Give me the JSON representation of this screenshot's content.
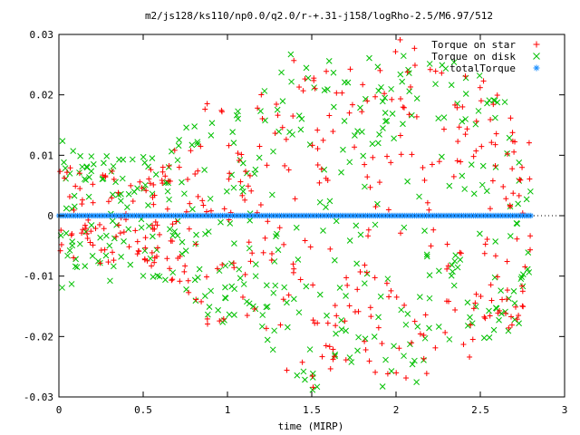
{
  "chart_data": {
    "type": "scatter",
    "title": "m2/js128/ks110/np0.0/q2.0/r-+.31-j158/logRho-2.5/M6.97/512",
    "xlabel": "time (MIRP)",
    "ylabel": "",
    "xlim": [
      0,
      3
    ],
    "ylim": [
      -0.03,
      0.03
    ],
    "x_ticks": [
      0,
      0.5,
      1,
      1.5,
      2,
      2.5,
      3
    ],
    "x_tick_labels": [
      "0",
      "0.5",
      "1",
      "1.5",
      "2",
      "2.5",
      "3"
    ],
    "y_ticks": [
      -0.03,
      -0.02,
      -0.01,
      0,
      0.01,
      0.02,
      0.03
    ],
    "y_tick_labels": [
      "-0.03",
      "-0.02",
      "-0.01",
      "0",
      "0.01",
      "0.02",
      "0.03"
    ],
    "grid": false,
    "legend_position": "top-right",
    "t_range": [
      0,
      2.8
    ],
    "series": [
      {
        "name": "Torque on star",
        "marker": "plus",
        "color": "#ff0000",
        "envelope": {
          "t": [
            0,
            0.1,
            0.2,
            0.3,
            0.4,
            0.5,
            0.6,
            0.7,
            0.8,
            0.9,
            1.0,
            1.1,
            1.2,
            1.3,
            1.4,
            1.5,
            1.6,
            1.7,
            1.8,
            1.9,
            2.0,
            2.1,
            2.2,
            2.3,
            2.4,
            2.5,
            2.6,
            2.7,
            2.8
          ],
          "amplitude": [
            0.008,
            0.008,
            0.007,
            0.009,
            0.008,
            0.008,
            0.009,
            0.012,
            0.015,
            0.02,
            0.018,
            0.016,
            0.02,
            0.024,
            0.028,
            0.029,
            0.027,
            0.025,
            0.024,
            0.028,
            0.03,
            0.028,
            0.026,
            0.024,
            0.026,
            0.025,
            0.022,
            0.018,
            0.014
          ]
        }
      },
      {
        "name": "Torque on disk",
        "marker": "cross",
        "color": "#00c000",
        "envelope": {
          "t": [
            0,
            0.1,
            0.2,
            0.3,
            0.4,
            0.5,
            0.6,
            0.7,
            0.8,
            0.9,
            1.0,
            1.1,
            1.2,
            1.3,
            1.4,
            1.5,
            1.6,
            1.7,
            1.8,
            1.9,
            2.0,
            2.1,
            2.2,
            2.3,
            2.4,
            2.5,
            2.6,
            2.7,
            2.8
          ],
          "amplitude": [
            0.013,
            0.011,
            0.01,
            0.011,
            0.01,
            0.01,
            0.011,
            0.013,
            0.016,
            0.019,
            0.018,
            0.017,
            0.02,
            0.024,
            0.028,
            0.029,
            0.027,
            0.025,
            0.025,
            0.028,
            0.03,
            0.029,
            0.027,
            0.025,
            0.026,
            0.025,
            0.022,
            0.019,
            0.015
          ]
        }
      },
      {
        "name": "totalTorque",
        "marker": "star",
        "color": "#1e90ff",
        "x_range": [
          0,
          2.8
        ],
        "value": 0
      }
    ]
  }
}
